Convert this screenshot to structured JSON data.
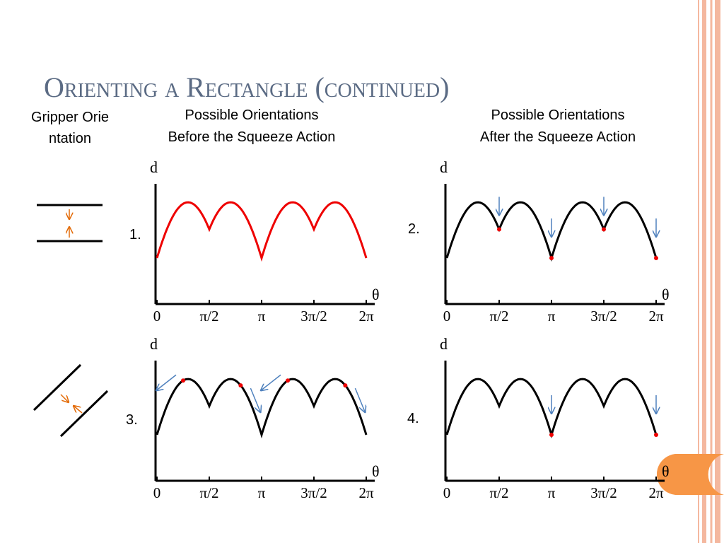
{
  "title": "Orienting a Rectangle (continued)",
  "gripper_label": "Gripper Orientation",
  "headers": [
    {
      "lines": [
        "Possible Orientations",
        "Before the Squeeze Action"
      ]
    },
    {
      "lines": [
        "Possible Orientations",
        "After the Squeeze Action"
      ]
    }
  ],
  "axis": {
    "y_label": "d",
    "x_label": "θ",
    "ticks": [
      "0",
      "π/2",
      "π",
      "3π/2",
      "2π"
    ]
  },
  "panels": [
    {
      "label": "1."
    },
    {
      "label": "2."
    },
    {
      "label": "3."
    },
    {
      "label": "4."
    }
  ]
}
